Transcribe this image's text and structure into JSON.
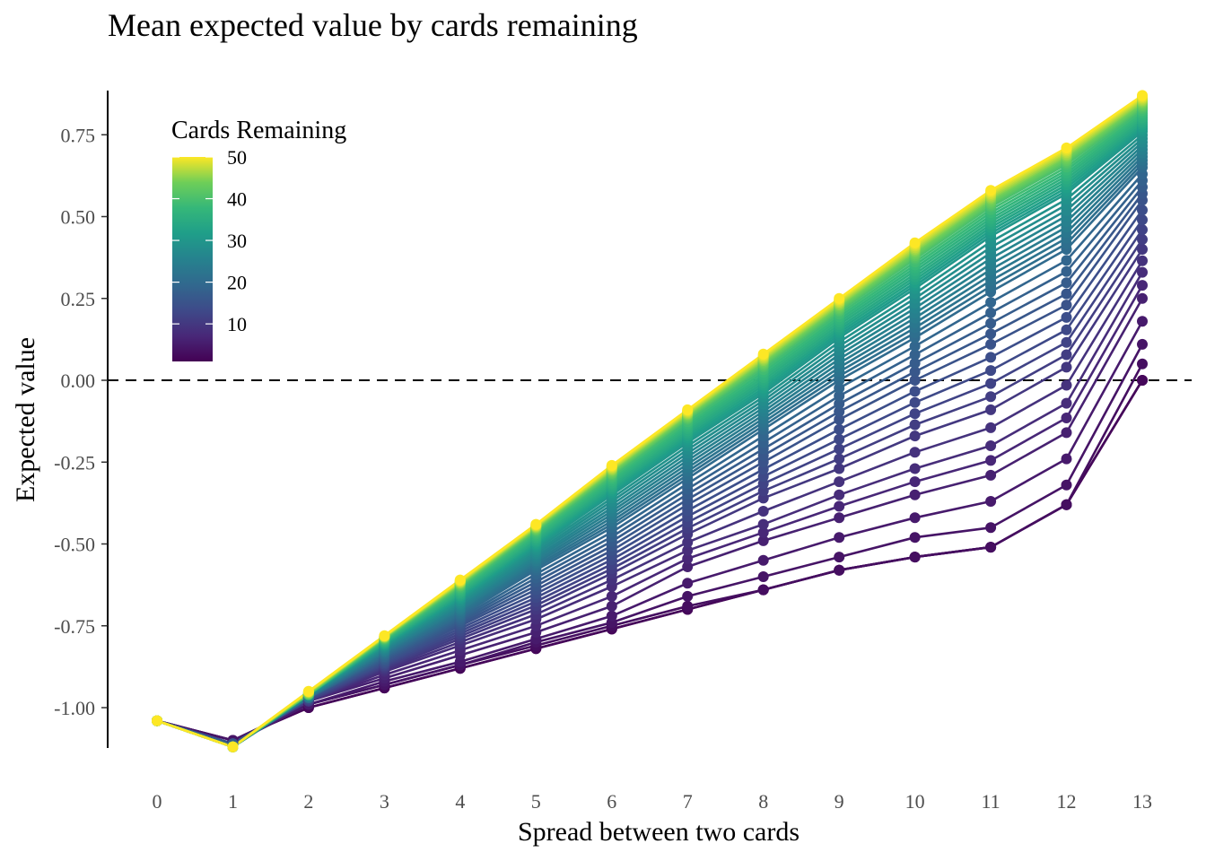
{
  "chart_data": {
    "type": "line",
    "title": "Mean expected value by cards remaining",
    "xlabel": "Spread between two cards",
    "ylabel": "Expected value",
    "x": [
      0,
      1,
      2,
      3,
      4,
      5,
      6,
      7,
      8,
      9,
      10,
      11,
      12,
      13
    ],
    "x_tick_labels": [
      "0",
      "1",
      "2",
      "3",
      "4",
      "5",
      "6",
      "7",
      "8",
      "9",
      "10",
      "11",
      "12",
      "13"
    ],
    "xlim": [
      -0.65,
      13.65
    ],
    "ylim": [
      -1.12,
      0.88
    ],
    "y_ticks": [
      0.75,
      0.5,
      0.25,
      0,
      -0.25,
      -0.5,
      -0.75,
      -1
    ],
    "y_tick_labels": [
      "0.75",
      "0.50",
      "0.25",
      "0.00",
      "-0.25",
      "-0.50",
      "-0.75",
      "-1.00"
    ],
    "reference_line": {
      "y": 0,
      "style": "dashed"
    },
    "legend": {
      "title": "Cards Remaining",
      "type": "colorbar",
      "palette": "viridis",
      "range": [
        1,
        50
      ],
      "breaks": [
        50,
        40,
        30,
        20,
        10
      ],
      "break_labels": [
        "50",
        "40",
        "30",
        "20",
        "10"
      ],
      "placement": "top-left inside"
    },
    "series_note": "one line per cards-remaining value 1..50; values interpolated between the anchor series below",
    "anchor_series": [
      {
        "cards": 1,
        "values": [
          -1.04,
          -1.1,
          -1.0,
          -0.94,
          -0.88,
          -0.82,
          -0.76,
          -0.7,
          -0.64,
          -0.58,
          -0.54,
          -0.51,
          -0.38,
          0.0
        ]
      },
      {
        "cards": 2,
        "values": [
          -1.04,
          -1.1,
          -1.0,
          -0.94,
          -0.88,
          -0.82,
          -0.76,
          -0.7,
          -0.64,
          -0.58,
          -0.54,
          -0.51,
          -0.38,
          0.0
        ]
      },
      {
        "cards": 3,
        "values": [
          -1.04,
          -1.1,
          -0.99,
          -0.93,
          -0.87,
          -0.81,
          -0.75,
          -0.69,
          -0.64,
          -0.58,
          -0.54,
          -0.51,
          -0.38,
          0.05
        ]
      },
      {
        "cards": 4,
        "values": [
          -1.04,
          -1.1,
          -0.99,
          -0.93,
          -0.87,
          -0.8,
          -0.74,
          -0.66,
          -0.6,
          -0.54,
          -0.48,
          -0.45,
          -0.32,
          0.11
        ]
      },
      {
        "cards": 5,
        "values": [
          -1.04,
          -1.11,
          -0.99,
          -0.92,
          -0.86,
          -0.79,
          -0.72,
          -0.62,
          -0.55,
          -0.48,
          -0.42,
          -0.37,
          -0.24,
          0.18
        ]
      },
      {
        "cards": 6,
        "values": [
          -1.04,
          -1.11,
          -0.98,
          -0.91,
          -0.84,
          -0.77,
          -0.69,
          -0.57,
          -0.49,
          -0.42,
          -0.35,
          -0.29,
          -0.16,
          0.25
        ]
      },
      {
        "cards": 8,
        "values": [
          -1.04,
          -1.11,
          -0.98,
          -0.89,
          -0.81,
          -0.73,
          -0.63,
          -0.52,
          -0.44,
          -0.35,
          -0.27,
          -0.2,
          -0.07,
          0.33
        ]
      },
      {
        "cards": 10,
        "values": [
          -1.04,
          -1.11,
          -0.98,
          -0.88,
          -0.79,
          -0.7,
          -0.59,
          -0.47,
          -0.36,
          -0.27,
          -0.17,
          -0.09,
          0.04,
          0.4
        ]
      },
      {
        "cards": 15,
        "values": [
          -1.04,
          -1.11,
          -0.97,
          -0.86,
          -0.75,
          -0.64,
          -0.52,
          -0.38,
          -0.25,
          -0.12,
          0.0,
          0.11,
          0.23,
          0.55
        ]
      },
      {
        "cards": 20,
        "values": [
          -1.04,
          -1.12,
          -0.97,
          -0.84,
          -0.72,
          -0.58,
          -0.45,
          -0.3,
          -0.15,
          0.0,
          0.13,
          0.27,
          0.4,
          0.65
        ]
      },
      {
        "cards": 30,
        "values": [
          -1.04,
          -1.12,
          -0.96,
          -0.81,
          -0.67,
          -0.51,
          -0.35,
          -0.19,
          -0.04,
          0.13,
          0.28,
          0.44,
          0.57,
          0.76
        ]
      },
      {
        "cards": 40,
        "values": [
          -1.04,
          -1.12,
          -0.96,
          -0.79,
          -0.63,
          -0.46,
          -0.29,
          -0.12,
          0.04,
          0.21,
          0.37,
          0.53,
          0.66,
          0.83
        ]
      },
      {
        "cards": 50,
        "values": [
          -1.04,
          -1.12,
          -0.95,
          -0.78,
          -0.61,
          -0.44,
          -0.26,
          -0.09,
          0.08,
          0.25,
          0.42,
          0.58,
          0.71,
          0.87
        ]
      }
    ]
  }
}
